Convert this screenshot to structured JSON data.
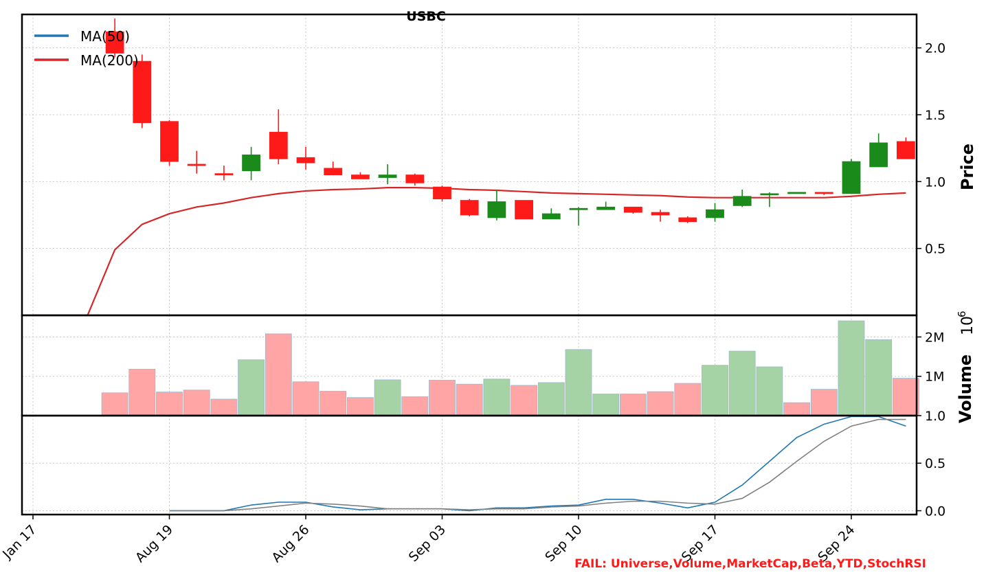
{
  "chart_data": {
    "type": "candlestick",
    "title": "USBC",
    "x_tick_labels": [
      "Jan 17",
      "Aug 19",
      "Aug 26",
      "Sep 03",
      "Sep 10",
      "Sep 17",
      "Sep 24"
    ],
    "price_panel": {
      "ylabel": "Price",
      "yticks": [
        "0.5",
        "1.0",
        "1.5",
        "2.0"
      ],
      "ylim": [
        0.0,
        2.25
      ],
      "legend": [
        {
          "label": "MA(50)",
          "color": "#1f77b4"
        },
        {
          "label": "MA(200)",
          "color": "#d62728"
        }
      ],
      "legend_position": "top-left",
      "grid": true,
      "up_color": "#1a8a1a",
      "down_color": "#ff1a1a",
      "candles": [
        {
          "x": 3,
          "open": 2.12,
          "high": 2.22,
          "low": 1.93,
          "close": 1.96
        },
        {
          "x": 4,
          "open": 1.9,
          "high": 1.95,
          "low": 1.4,
          "close": 1.44
        },
        {
          "x": 5,
          "open": 1.45,
          "high": 1.46,
          "low": 1.12,
          "close": 1.15
        },
        {
          "x": 6,
          "open": 1.13,
          "high": 1.23,
          "low": 1.06,
          "close": 1.12
        },
        {
          "x": 7,
          "open": 1.06,
          "high": 1.12,
          "low": 1.01,
          "close": 1.05
        },
        {
          "x": 8,
          "open": 1.08,
          "high": 1.26,
          "low": 1.01,
          "close": 1.2
        },
        {
          "x": 9,
          "open": 1.37,
          "high": 1.54,
          "low": 1.13,
          "close": 1.17
        },
        {
          "x": 10,
          "open": 1.18,
          "high": 1.26,
          "low": 1.09,
          "close": 1.14
        },
        {
          "x": 11,
          "open": 1.1,
          "high": 1.15,
          "low": 1.05,
          "close": 1.05
        },
        {
          "x": 12,
          "open": 1.05,
          "high": 1.07,
          "low": 1.02,
          "close": 1.02
        },
        {
          "x": 13,
          "open": 1.03,
          "high": 1.13,
          "low": 0.98,
          "close": 1.05
        },
        {
          "x": 14,
          "open": 1.05,
          "high": 1.06,
          "low": 0.97,
          "close": 0.99
        },
        {
          "x": 15,
          "open": 0.96,
          "high": 0.97,
          "low": 0.85,
          "close": 0.87
        },
        {
          "x": 16,
          "open": 0.86,
          "high": 0.87,
          "low": 0.74,
          "close": 0.75
        },
        {
          "x": 17,
          "open": 0.73,
          "high": 0.94,
          "low": 0.71,
          "close": 0.85
        },
        {
          "x": 18,
          "open": 0.86,
          "high": 0.86,
          "low": 0.72,
          "close": 0.72
        },
        {
          "x": 19,
          "open": 0.72,
          "high": 0.8,
          "low": 0.72,
          "close": 0.76
        },
        {
          "x": 20,
          "open": 0.79,
          "high": 0.81,
          "low": 0.67,
          "close": 0.8
        },
        {
          "x": 21,
          "open": 0.79,
          "high": 0.85,
          "low": 0.79,
          "close": 0.81
        },
        {
          "x": 22,
          "open": 0.81,
          "high": 0.81,
          "low": 0.76,
          "close": 0.77
        },
        {
          "x": 23,
          "open": 0.77,
          "high": 0.79,
          "low": 0.7,
          "close": 0.75
        },
        {
          "x": 24,
          "open": 0.73,
          "high": 0.74,
          "low": 0.69,
          "close": 0.7
        },
        {
          "x": 25,
          "open": 0.73,
          "high": 0.84,
          "low": 0.7,
          "close": 0.79
        },
        {
          "x": 26,
          "open": 0.82,
          "high": 0.94,
          "low": 0.81,
          "close": 0.89
        },
        {
          "x": 27,
          "open": 0.9,
          "high": 0.92,
          "low": 0.81,
          "close": 0.91
        },
        {
          "x": 28,
          "open": 0.92,
          "high": 0.92,
          "low": 0.92,
          "close": 0.92
        },
        {
          "x": 29,
          "open": 0.92,
          "high": 0.92,
          "low": 0.9,
          "close": 0.91
        },
        {
          "x": 30,
          "open": 0.91,
          "high": 1.17,
          "low": 0.91,
          "close": 1.15
        },
        {
          "x": 31,
          "open": 1.11,
          "high": 1.36,
          "low": 1.11,
          "close": 1.29
        },
        {
          "x": 32,
          "open": 1.3,
          "high": 1.33,
          "low": 1.17,
          "close": 1.17
        }
      ],
      "ma200": {
        "x": [
          0,
          2,
          3,
          4,
          5,
          6,
          7,
          8,
          9,
          10,
          11,
          12,
          13,
          14,
          15,
          16,
          17,
          18,
          19,
          20,
          21,
          22,
          23,
          24,
          25,
          26,
          27,
          28,
          29,
          30,
          31,
          32
        ],
        "y": [
          0.0,
          0.0,
          0.49,
          0.68,
          0.76,
          0.81,
          0.84,
          0.88,
          0.91,
          0.93,
          0.94,
          0.945,
          0.955,
          0.955,
          0.95,
          0.94,
          0.935,
          0.925,
          0.915,
          0.91,
          0.905,
          0.9,
          0.895,
          0.885,
          0.88,
          0.88,
          0.88,
          0.88,
          0.88,
          0.89,
          0.905,
          0.915
        ]
      }
    },
    "volume_panel": {
      "ylabel": "Volume",
      "exponent_label": "10",
      "exponent_power": "6",
      "yticks": [
        "1M",
        "2M"
      ],
      "ylim": [
        0,
        2.55
      ],
      "up_color": "#a5d3a5",
      "down_color": "#ffa5a5",
      "bars": [
        {
          "x": 3,
          "value": 0.58,
          "up": false
        },
        {
          "x": 4,
          "value": 1.18,
          "up": false
        },
        {
          "x": 5,
          "value": 0.6,
          "up": false
        },
        {
          "x": 6,
          "value": 0.65,
          "up": false
        },
        {
          "x": 7,
          "value": 0.42,
          "up": false
        },
        {
          "x": 8,
          "value": 1.42,
          "up": true
        },
        {
          "x": 9,
          "value": 2.08,
          "up": false
        },
        {
          "x": 10,
          "value": 0.86,
          "up": false
        },
        {
          "x": 11,
          "value": 0.62,
          "up": false
        },
        {
          "x": 12,
          "value": 0.46,
          "up": false
        },
        {
          "x": 13,
          "value": 0.91,
          "up": true
        },
        {
          "x": 14,
          "value": 0.48,
          "up": false
        },
        {
          "x": 15,
          "value": 0.9,
          "up": false
        },
        {
          "x": 16,
          "value": 0.8,
          "up": false
        },
        {
          "x": 17,
          "value": 0.93,
          "up": true
        },
        {
          "x": 18,
          "value": 0.77,
          "up": false
        },
        {
          "x": 19,
          "value": 0.84,
          "up": true
        },
        {
          "x": 20,
          "value": 1.68,
          "up": true
        },
        {
          "x": 21,
          "value": 0.55,
          "up": true
        },
        {
          "x": 22,
          "value": 0.55,
          "up": false
        },
        {
          "x": 23,
          "value": 0.61,
          "up": false
        },
        {
          "x": 24,
          "value": 0.82,
          "up": false
        },
        {
          "x": 25,
          "value": 1.28,
          "up": true
        },
        {
          "x": 26,
          "value": 1.64,
          "up": true
        },
        {
          "x": 27,
          "value": 1.24,
          "up": true
        },
        {
          "x": 28,
          "value": 0.33,
          "up": false
        },
        {
          "x": 29,
          "value": 0.67,
          "up": false
        },
        {
          "x": 30,
          "value": 2.41,
          "up": true
        },
        {
          "x": 31,
          "value": 1.93,
          "up": true
        },
        {
          "x": 32,
          "value": 0.95,
          "up": false
        }
      ]
    },
    "stoch_panel": {
      "yticks": [
        "0.0",
        "0.5",
        "1.0"
      ],
      "ylim": [
        -0.04,
        1.0
      ],
      "series": [
        {
          "color": "#1f77b4",
          "x": [
            5,
            6,
            7,
            8,
            9,
            10,
            11,
            12,
            13,
            14,
            15,
            16,
            17,
            18,
            19,
            20,
            21,
            22,
            23,
            24,
            25,
            26,
            27,
            28,
            29,
            30,
            31,
            32
          ],
          "y": [
            0.0,
            0.0,
            0.0,
            0.06,
            0.09,
            0.09,
            0.04,
            0.01,
            0.02,
            0.02,
            0.02,
            0.0,
            0.03,
            0.03,
            0.05,
            0.06,
            0.12,
            0.12,
            0.08,
            0.03,
            0.09,
            0.27,
            0.52,
            0.77,
            0.91,
            0.99,
            0.99,
            0.89
          ]
        },
        {
          "color": "#808080",
          "x": [
            5,
            6,
            7,
            8,
            9,
            10,
            11,
            12,
            13,
            14,
            15,
            16,
            17,
            18,
            19,
            20,
            21,
            22,
            23,
            24,
            25,
            26,
            27,
            28,
            29,
            30,
            31,
            32
          ],
          "y": [
            0.0,
            0.0,
            0.0,
            0.02,
            0.05,
            0.08,
            0.07,
            0.05,
            0.02,
            0.02,
            0.02,
            0.01,
            0.02,
            0.02,
            0.04,
            0.05,
            0.08,
            0.1,
            0.1,
            0.08,
            0.07,
            0.13,
            0.3,
            0.52,
            0.73,
            0.89,
            0.96,
            0.96
          ]
        }
      ]
    },
    "annotation": "FAIL: Universe,Volume,MarketCap,Beta,YTD,StochRSI"
  }
}
